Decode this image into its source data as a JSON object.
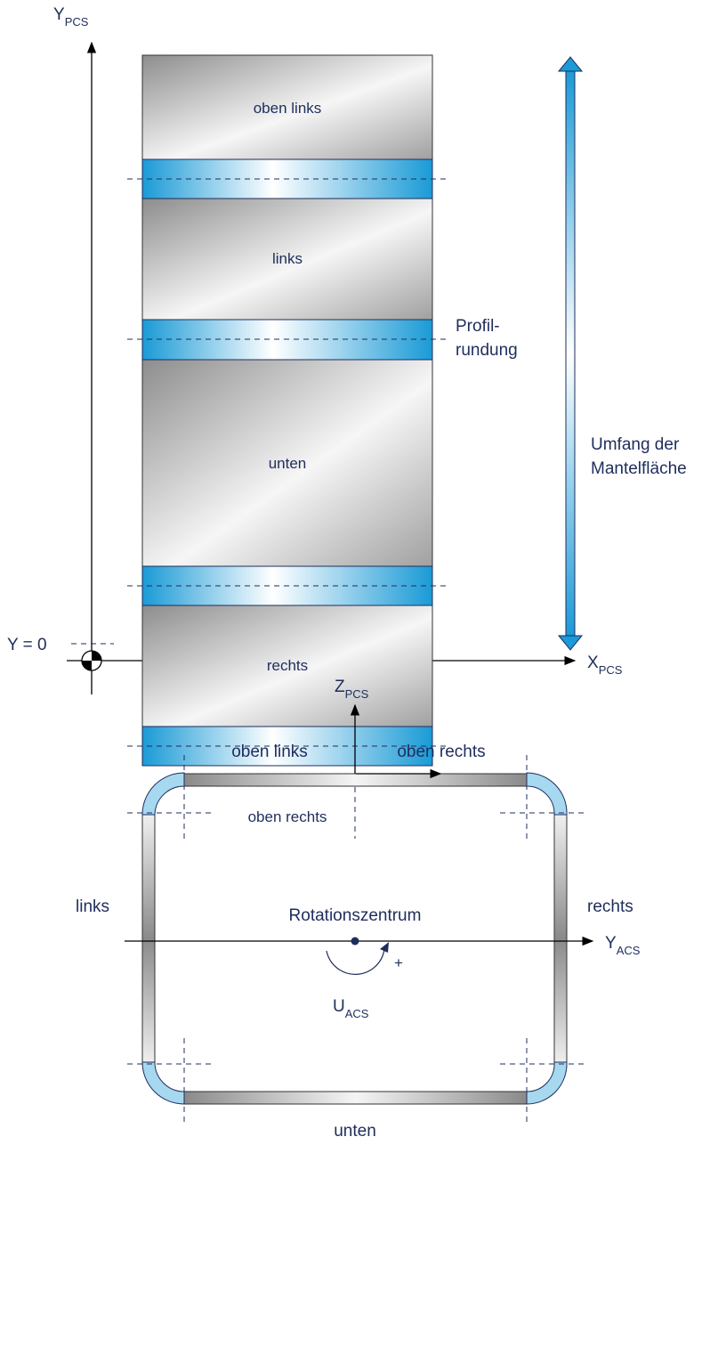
{
  "top_view": {
    "y_axis": {
      "label": "Y",
      "sub": "PCS"
    },
    "x_axis": {
      "label": "X",
      "sub": "PCS"
    },
    "y_zero_label": "Y = 0",
    "sections": [
      "oben links",
      "links",
      "unten",
      "rechts",
      "oben rechts"
    ],
    "rounding_label_1": "Profil-",
    "rounding_label_2": "rundung",
    "perimeter_label_1": "Umfang der",
    "perimeter_label_2": "Mantelfläche"
  },
  "section_view": {
    "z_axis": {
      "label": "Z",
      "sub": "PCS"
    },
    "y_axis": {
      "label": "Y",
      "sub": "ACS"
    },
    "u_label": {
      "label": "U",
      "sub": "ACS"
    },
    "plus": "+",
    "rotation_center": "Rotationszentrum",
    "top_left": "oben links",
    "top_right": "oben rechts",
    "left": "links",
    "right": "rechts",
    "bottom": "unten"
  },
  "colors": {
    "text": "#1f2d5c",
    "blue": "#1a9ad6",
    "steel_dark": "#8e8e8e",
    "steel_light": "#f4f4f4"
  }
}
